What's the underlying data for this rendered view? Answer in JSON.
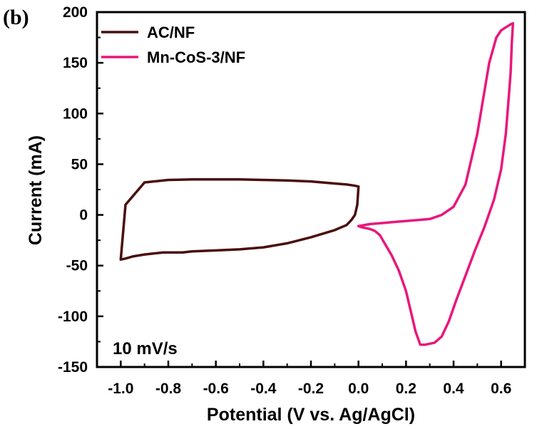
{
  "chart_data": {
    "type": "line",
    "panel_label": "(b)",
    "xlabel": "Potential (V vs. Ag/AgCl)",
    "ylabel": "Current (mA)",
    "xlim": [
      -1.1,
      0.7
    ],
    "ylim": [
      -150,
      200
    ],
    "x_ticks": [
      "-1.0",
      "-0.8",
      "-0.6",
      "-0.4",
      "-0.2",
      "0.0",
      "0.2",
      "0.4",
      "0.6"
    ],
    "y_ticks": [
      "200",
      "150",
      "100",
      "50",
      "0",
      "-50",
      "-100",
      "-150"
    ],
    "annotation": "10 mV/s",
    "grid": false,
    "legend_position": "top-left",
    "series": [
      {
        "name": "AC/NF",
        "color": "#4a0e0e",
        "x": [
          0.0,
          -0.02,
          -0.05,
          -0.1,
          -0.2,
          -0.3,
          -0.4,
          -0.5,
          -0.6,
          -0.7,
          -0.8,
          -0.9,
          -0.98,
          -1.0,
          -0.98,
          -0.95,
          -0.9,
          -0.86,
          -0.82,
          -0.78,
          -0.74,
          -0.7,
          -0.6,
          -0.5,
          -0.4,
          -0.3,
          -0.2,
          -0.1,
          -0.05,
          -0.03,
          -0.015,
          -0.005,
          0.0
        ],
        "y": [
          28,
          29,
          30,
          31,
          33,
          34,
          34.5,
          35,
          35,
          35,
          34.5,
          32,
          10,
          -44,
          -43,
          -41,
          -39,
          -38,
          -37,
          -37,
          -37,
          -36,
          -35,
          -34,
          -32,
          -28,
          -22,
          -15,
          -10,
          -5,
          0,
          10,
          28
        ]
      },
      {
        "name": "Mn-CoS-3/NF",
        "color": "#e8187c",
        "x": [
          0.0,
          0.05,
          0.1,
          0.15,
          0.2,
          0.25,
          0.3,
          0.35,
          0.4,
          0.45,
          0.5,
          0.55,
          0.58,
          0.6,
          0.62,
          0.64,
          0.65,
          0.645,
          0.64,
          0.63,
          0.62,
          0.6,
          0.57,
          0.53,
          0.49,
          0.45,
          0.41,
          0.38,
          0.35,
          0.32,
          0.3,
          0.28,
          0.26,
          0.24,
          0.22,
          0.2,
          0.17,
          0.14,
          0.11,
          0.09,
          0.07,
          0.05,
          0.03,
          0.01,
          0.0
        ],
        "y": [
          -11,
          -9,
          -8,
          -7,
          -6,
          -5,
          -4,
          0,
          8,
          30,
          80,
          150,
          175,
          182,
          185,
          188,
          189,
          170,
          140,
          110,
          80,
          45,
          15,
          -12,
          -35,
          -60,
          -85,
          -105,
          -120,
          -126,
          -127,
          -128,
          -128,
          -115,
          -95,
          -75,
          -55,
          -40,
          -28,
          -20,
          -16,
          -14,
          -13,
          -12,
          -11
        ]
      }
    ]
  }
}
